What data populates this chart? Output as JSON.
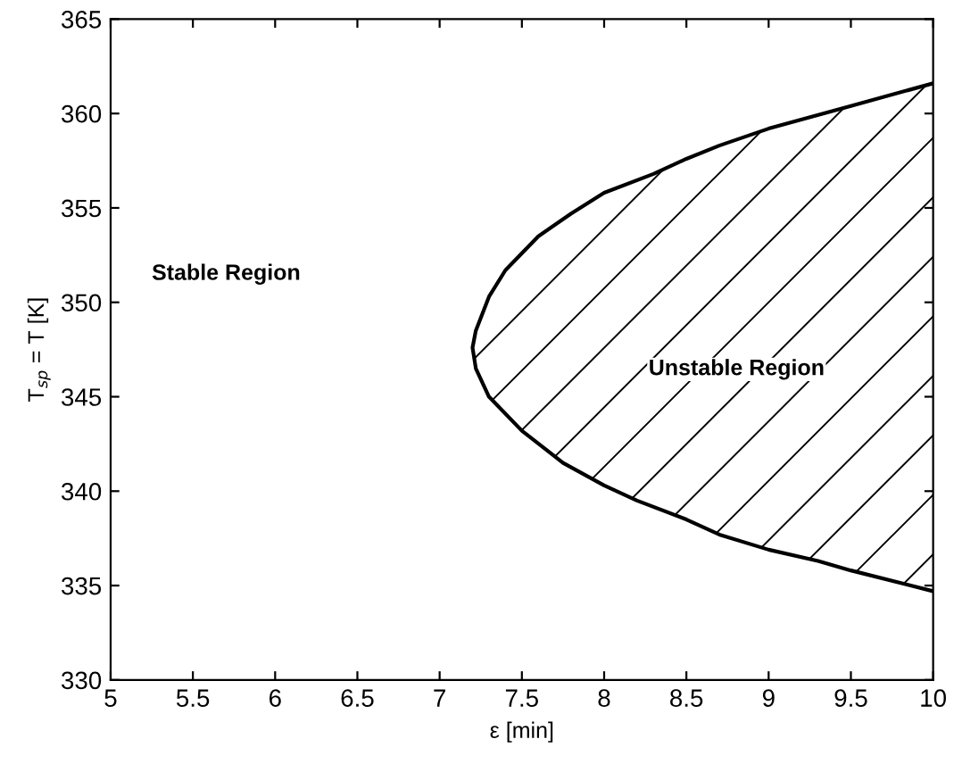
{
  "chart_data": {
    "type": "area",
    "xlabel": "ε [min]",
    "ylabel": "T$_{sp}$ = T [K]",
    "xlim": [
      5,
      10
    ],
    "ylim": [
      330,
      365
    ],
    "xticks": [
      5,
      5.5,
      6,
      6.5,
      7,
      7.5,
      8,
      8.5,
      9,
      9.5,
      10
    ],
    "yticks": [
      330,
      335,
      340,
      345,
      350,
      355,
      360,
      365
    ],
    "grid": false,
    "series": [
      {
        "color": "#000000",
        "x": [
          10,
          9.5,
          9,
          8.7,
          8.5,
          8.3,
          8,
          7.8,
          7.6,
          7.4,
          7.3,
          7.22,
          7.2,
          7.22,
          7.3,
          7.5,
          7.75,
          8,
          8.2,
          8.5,
          8.7,
          9,
          9.3,
          9.5,
          10
        ],
        "values": [
          361.6,
          360.4,
          359.2,
          358.3,
          357.6,
          356.8,
          355.8,
          354.7,
          353.5,
          351.7,
          350.3,
          348.5,
          347.6,
          346.5,
          345,
          343.2,
          341.5,
          340.3,
          339.5,
          338.5,
          337.7,
          336.9,
          336.3,
          335.8,
          334.7
        ]
      }
    ],
    "annotations": [
      "Stable Region",
      "Unstable Region"
    ]
  }
}
